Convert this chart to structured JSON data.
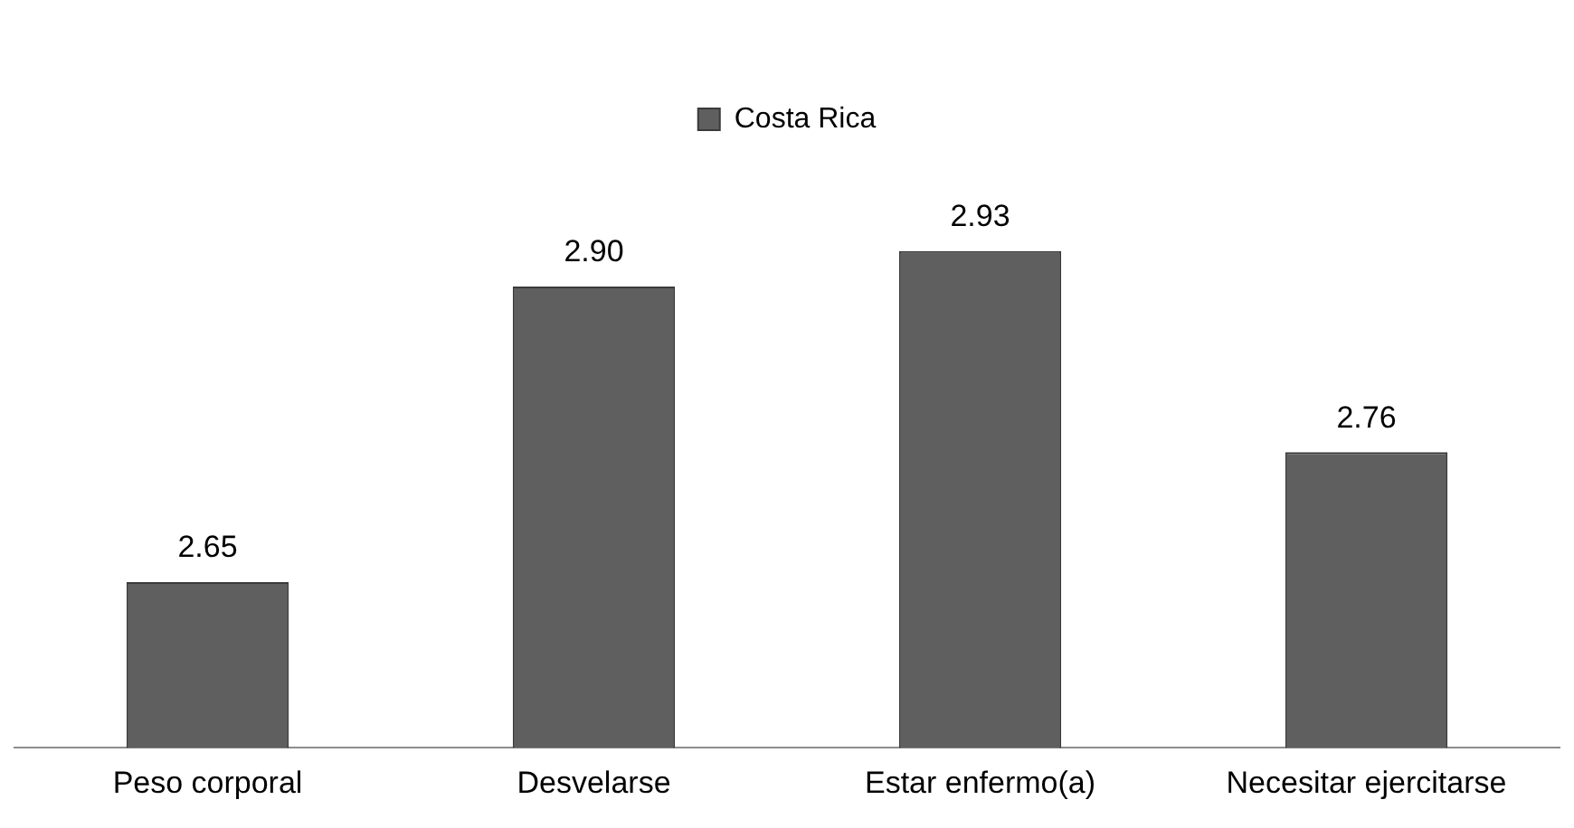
{
  "chart_data": {
    "type": "bar",
    "categories": [
      "Peso corporal",
      "Desvelarse",
      "Estar enfermo(a)",
      "Necesitar ejercitarse"
    ],
    "series": [
      {
        "name": "Costa Rica",
        "color": "#5f5f5f",
        "values": [
          2.65,
          2.9,
          2.93,
          2.76
        ],
        "value_labels": [
          "2.65",
          "2.90",
          "2.93",
          "2.76"
        ]
      }
    ],
    "tick_labels": "x",
    "grid": false,
    "legend": "top"
  }
}
